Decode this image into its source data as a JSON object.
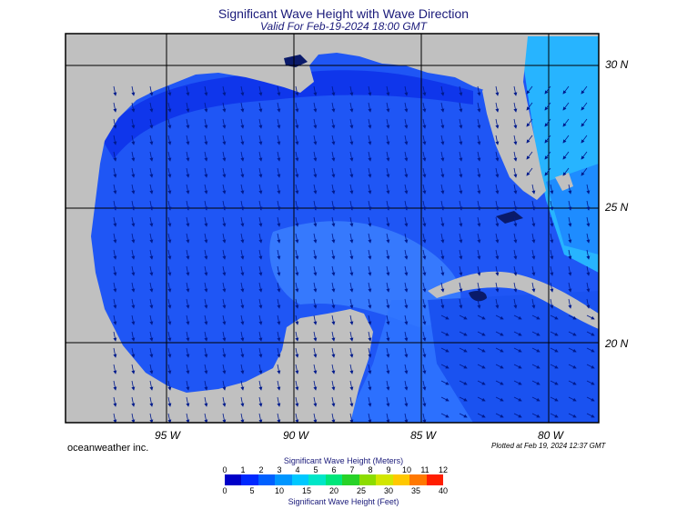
{
  "title": "Significant Wave Height with Wave Direction",
  "subtitle": "Valid For Feb-19-2024 18:00 GMT",
  "latitude_labels": [
    "30 N",
    "25 N",
    "20 N"
  ],
  "longitude_labels": [
    "95 W",
    "90 W",
    "85 W",
    "80 W"
  ],
  "credit": "oceanweather inc.",
  "plotted": "Plotted at Feb 19, 2024 12:37 GMT",
  "legend": {
    "title_meters": "Significant Wave Height (Meters)",
    "title_feet": "Significant Wave Height (Feet)",
    "meters_ticks": [
      "0",
      "1",
      "2",
      "3",
      "4",
      "5",
      "6",
      "7",
      "8",
      "9",
      "10",
      "11",
      "12"
    ],
    "feet_ticks": [
      "0",
      "5",
      "10",
      "15",
      "20",
      "25",
      "30",
      "35",
      "40"
    ],
    "colors": [
      "#0000c8",
      "#0028ff",
      "#0060ff",
      "#0096ff",
      "#00c8ff",
      "#00e6c8",
      "#00e67a",
      "#28d228",
      "#8cdc00",
      "#d2e600",
      "#ffc800",
      "#ff7800",
      "#ff1e00"
    ]
  },
  "colors": {
    "land": "#c0c0c0",
    "ocean_deep": "#0a2aef",
    "ocean_mid": "#2a6aff",
    "ocean_light": "#4f93ff",
    "atlantic": "#2cc8ff",
    "grid": "#000000",
    "arrow": "#001a8c"
  }
}
